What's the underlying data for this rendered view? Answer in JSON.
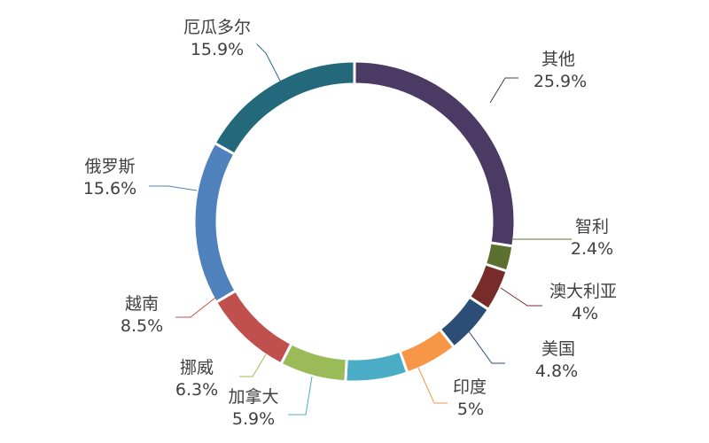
{
  "chart_data": {
    "type": "pie",
    "variant": "donut",
    "categories": [
      "其他",
      "智利",
      "澳大利亚",
      "美国",
      "印度",
      "加拿大",
      "挪威",
      "越南",
      "俄罗斯",
      "厄瓜多尔"
    ],
    "values": [
      25.9,
      2.4,
      4,
      4.8,
      5,
      5.9,
      6.3,
      8.5,
      15.6,
      15.9
    ],
    "value_labels": [
      "25.9%",
      "2.4%",
      "4%",
      "4.8%",
      "5%",
      "5.9%",
      "6.3%",
      "8.5%",
      "15.6%",
      "15.9%"
    ],
    "colors": [
      "#4B3A63",
      "#5C7031",
      "#772C2A",
      "#2C4D75",
      "#F79646",
      "#4BACC6",
      "#9BBB59",
      "#C0504D",
      "#4F81BD",
      "#23697B"
    ],
    "legend": "none",
    "title": ""
  }
}
